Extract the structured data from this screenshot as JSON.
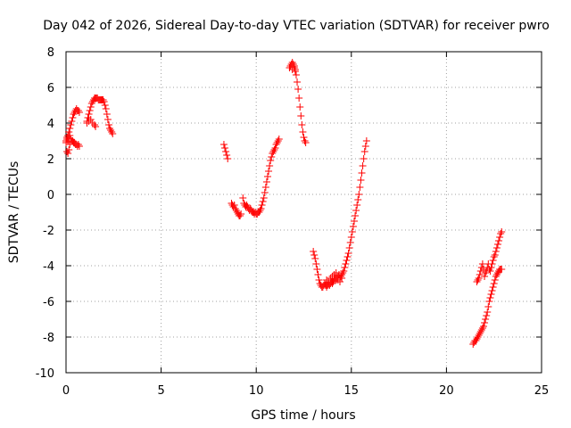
{
  "chart_data": {
    "type": "scatter",
    "title": "Day 042 of 2026, Sidereal Day-to-day VTEC variation (SDTVAR) for receiver pwro",
    "xlabel": "GPS time / hours",
    "ylabel": "SDTVAR / TECUs",
    "xlim": [
      0,
      25
    ],
    "ylim": [
      -10,
      8
    ],
    "xticks": [
      "0",
      "5",
      "10",
      "15",
      "20",
      "25"
    ],
    "yticks": [
      "-10",
      "-8",
      "-6",
      "-4",
      "-2",
      "0",
      "2",
      "4",
      "6",
      "8"
    ],
    "grid": true,
    "marker": "plus",
    "color": "#ff0000",
    "series": [
      {
        "values_x": [
          0.0,
          0.05,
          0.1,
          0.15,
          0.2,
          0.25,
          0.3,
          0.35,
          0.4,
          0.45,
          0.5,
          0.55,
          0.6,
          0.65,
          0.7,
          0.0,
          0.05,
          0.1,
          0.15,
          0.2,
          0.25,
          0.3,
          0.35,
          0.4,
          0.45,
          0.5,
          0.55,
          0.6,
          0.65,
          0.7,
          0.05,
          0.1,
          0.15,
          0.2
        ],
        "values_y": [
          3.0,
          3.1,
          3.3,
          3.5,
          3.7,
          3.9,
          4.1,
          4.3,
          4.5,
          4.6,
          4.7,
          4.8,
          4.7,
          4.7,
          4.6,
          2.9,
          3.2,
          3.0,
          3.1,
          3.3,
          3.1,
          3.0,
          3.0,
          2.9,
          2.9,
          2.8,
          2.8,
          2.7,
          2.8,
          2.7,
          2.4,
          2.3,
          2.5,
          2.8
        ]
      },
      {
        "values_x": [
          1.1,
          1.15,
          1.2,
          1.25,
          1.3,
          1.35,
          1.4,
          1.45,
          1.5,
          1.55,
          1.6,
          1.65,
          1.7,
          1.75,
          1.8,
          1.85,
          1.9,
          1.95,
          2.0,
          2.05,
          2.1,
          2.15,
          2.2,
          2.25,
          2.3,
          2.35,
          2.4,
          2.45,
          1.1,
          1.2,
          1.3,
          1.4,
          1.5,
          1.55
        ],
        "values_y": [
          4.1,
          4.3,
          4.5,
          4.7,
          4.9,
          5.1,
          5.2,
          5.3,
          5.4,
          5.4,
          5.4,
          5.4,
          5.3,
          5.3,
          5.3,
          5.3,
          5.3,
          5.3,
          5.2,
          5.0,
          4.8,
          4.5,
          4.2,
          3.9,
          3.7,
          3.6,
          3.5,
          3.4,
          4.0,
          4.1,
          4.2,
          4.0,
          3.9,
          3.8
        ]
      },
      {
        "values_x": [
          8.3,
          8.35,
          8.4,
          8.45,
          8.5
        ],
        "values_y": [
          2.8,
          2.6,
          2.4,
          2.2,
          2.0
        ]
      },
      {
        "values_x": [
          8.7,
          8.75,
          8.8,
          8.85,
          8.9,
          8.95,
          9.0,
          9.05,
          9.1,
          9.15,
          9.2,
          9.3,
          9.35,
          9.4,
          9.45,
          9.5,
          9.55,
          9.6,
          9.65,
          9.7,
          9.75,
          9.8,
          9.85,
          9.9,
          9.95,
          10.0,
          10.05,
          10.1,
          10.15,
          10.2,
          10.25,
          10.3,
          10.35,
          10.4,
          10.45,
          10.5,
          10.55,
          10.6,
          10.65,
          10.7,
          10.75,
          10.8,
          10.85,
          10.9,
          10.95,
          11.0,
          11.05,
          11.1,
          11.15,
          11.2
        ],
        "values_y": [
          -0.5,
          -0.6,
          -0.7,
          -0.6,
          -0.8,
          -0.9,
          -1.0,
          -1.1,
          -1.2,
          -1.2,
          -1.1,
          -0.2,
          -0.5,
          -0.6,
          -0.7,
          -0.6,
          -0.7,
          -0.8,
          -0.9,
          -0.8,
          -0.9,
          -1.0,
          -1.0,
          -1.1,
          -1.0,
          -1.1,
          -1.1,
          -1.0,
          -1.0,
          -0.9,
          -0.8,
          -0.6,
          -0.4,
          -0.2,
          0.1,
          0.4,
          0.7,
          1.0,
          1.3,
          1.6,
          1.9,
          2.1,
          2.3,
          2.4,
          2.5,
          2.6,
          2.8,
          2.9,
          3.0,
          3.1
        ]
      },
      {
        "values_x": [
          11.75,
          11.8,
          11.85,
          11.9,
          11.95,
          12.0,
          12.05,
          12.1,
          12.15,
          12.2,
          12.25,
          12.3,
          12.35,
          12.4,
          12.45,
          12.5,
          12.55,
          12.6,
          11.9,
          12.0,
          12.05
        ],
        "values_y": [
          7.1,
          7.2,
          7.3,
          7.4,
          7.3,
          7.2,
          7.0,
          6.7,
          6.3,
          5.9,
          5.4,
          4.9,
          4.4,
          3.9,
          3.5,
          3.2,
          3.0,
          2.9,
          7.0,
          7.1,
          6.9
        ]
      },
      {
        "values_x": [
          13.0,
          13.05,
          13.1,
          13.15,
          13.2,
          13.25,
          13.3,
          13.35,
          13.4,
          13.45,
          13.5,
          13.55,
          13.6,
          13.65,
          13.7,
          13.75,
          13.8,
          13.85,
          13.9,
          13.95,
          14.0,
          14.05,
          14.1,
          14.15,
          14.2,
          14.25,
          14.3,
          14.35,
          14.4,
          14.45,
          14.5,
          14.55,
          14.6,
          14.65,
          14.7,
          14.75,
          14.8,
          14.85,
          14.9,
          14.95,
          15.0,
          15.05,
          15.1,
          15.15,
          15.2,
          15.25,
          15.3,
          15.35,
          15.4,
          15.45,
          15.5,
          15.55,
          15.6,
          15.65,
          15.7,
          15.75,
          15.8,
          13.7,
          13.8,
          13.9,
          14.0,
          14.1,
          14.2,
          14.3,
          14.4,
          14.5
        ],
        "values_y": [
          -3.2,
          -3.4,
          -3.6,
          -3.9,
          -4.2,
          -4.5,
          -4.8,
          -5.0,
          -5.1,
          -5.2,
          -5.2,
          -5.1,
          -5.0,
          -5.1,
          -5.2,
          -5.1,
          -5.0,
          -5.1,
          -5.0,
          -4.9,
          -5.0,
          -4.9,
          -4.8,
          -4.7,
          -4.8,
          -4.7,
          -4.6,
          -4.5,
          -4.7,
          -4.6,
          -4.5,
          -4.4,
          -4.3,
          -4.1,
          -3.9,
          -3.7,
          -3.5,
          -3.3,
          -3.0,
          -2.7,
          -2.4,
          -2.1,
          -1.8,
          -1.5,
          -1.2,
          -0.9,
          -0.6,
          -0.3,
          0.0,
          0.4,
          0.8,
          1.2,
          1.6,
          2.0,
          2.4,
          2.7,
          3.0,
          -4.8,
          -4.9,
          -4.7,
          -4.6,
          -4.5,
          -4.4,
          -4.8,
          -4.9,
          -4.7
        ]
      },
      {
        "values_x": [
          21.4,
          21.45,
          21.5,
          21.55,
          21.6,
          21.65,
          21.7,
          21.75,
          21.8,
          21.85,
          21.9,
          21.95,
          22.0,
          22.05,
          22.1,
          22.15,
          22.2,
          22.25,
          22.3,
          22.35,
          22.4,
          22.45,
          22.5,
          22.55,
          22.6,
          22.65,
          22.7,
          22.75,
          22.8,
          22.85,
          22.9
        ],
        "values_y": [
          -8.4,
          -8.3,
          -8.2,
          -8.2,
          -8.1,
          -8.0,
          -7.9,
          -7.8,
          -7.7,
          -7.6,
          -7.5,
          -7.4,
          -7.2,
          -7.0,
          -6.8,
          -6.6,
          -6.3,
          -6.0,
          -5.8,
          -5.6,
          -5.4,
          -5.2,
          -5.0,
          -4.8,
          -4.6,
          -4.5,
          -4.4,
          -4.3,
          -4.2,
          -4.2,
          -4.2
        ]
      },
      {
        "values_x": [
          21.6,
          21.65,
          21.7,
          21.75,
          21.8,
          21.85,
          21.9,
          21.95,
          22.0,
          22.05,
          22.1,
          22.15,
          22.2,
          22.25,
          22.3,
          22.35,
          22.4,
          22.45,
          22.5,
          22.55,
          22.6,
          22.65,
          22.7,
          22.75,
          22.8,
          22.85,
          22.9
        ],
        "values_y": [
          -4.9,
          -4.8,
          -4.7,
          -4.5,
          -4.3,
          -4.1,
          -3.9,
          -4.2,
          -4.6,
          -4.4,
          -4.3,
          -4.1,
          -3.9,
          -4.2,
          -4.3,
          -4.1,
          -3.9,
          -3.7,
          -3.5,
          -3.4,
          -3.2,
          -3.0,
          -2.8,
          -2.6,
          -2.4,
          -2.2,
          -2.1
        ]
      }
    ]
  }
}
